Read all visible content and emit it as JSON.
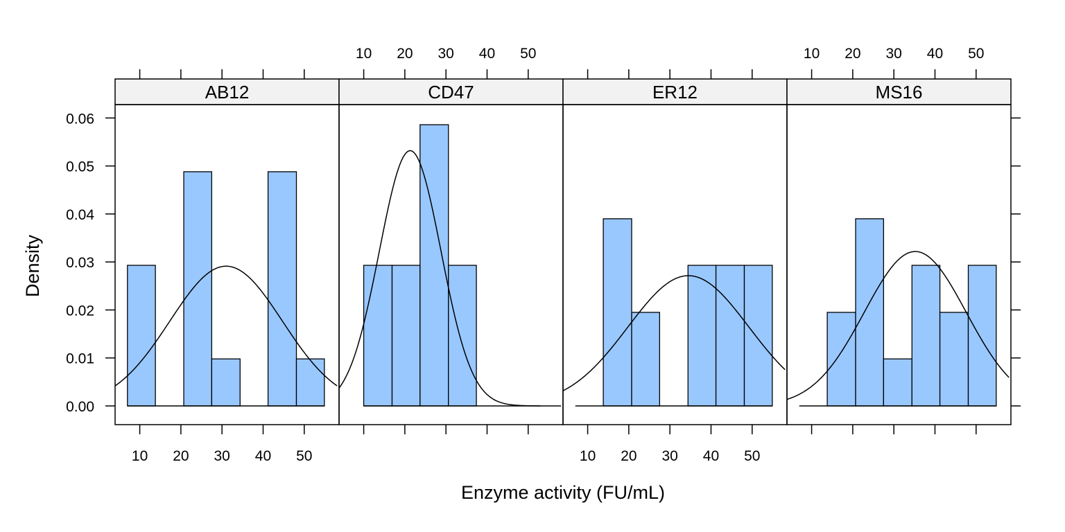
{
  "chart_data": {
    "type": "bar",
    "subtype": "lattice-histogram-with-density",
    "xlabel": "Enzyme activity (FU/mL)",
    "ylabel": "Density",
    "xlim": [
      4,
      58
    ],
    "ylim": [
      -0.004,
      0.0625
    ],
    "x_ticks": [
      10,
      20,
      30,
      40,
      50
    ],
    "y_ticks": [
      0.0,
      0.01,
      0.02,
      0.03,
      0.04,
      0.05,
      0.06
    ],
    "y_tick_labels": [
      "0.00",
      "0.01",
      "0.02",
      "0.03",
      "0.04",
      "0.05",
      "0.06"
    ],
    "grid": false,
    "colors": {
      "bar_fill": "#99c8ff",
      "bar_stroke": "#000000",
      "strip_fill": "#f2f2f2"
    },
    "panels": [
      {
        "name": "AB12",
        "x_tick_labels_side": "bottom",
        "baseline": [
          7,
          55
        ],
        "bins": [
          7,
          13.8,
          20.7,
          27.5,
          34.4,
          41.2,
          48.1,
          54.9
        ],
        "densities": [
          0.0293,
          0.0,
          0.0488,
          0.0098,
          0.0,
          0.0488,
          0.0098
        ],
        "curve": {
          "mean": 31,
          "sd": 13.7
        }
      },
      {
        "name": "CD47",
        "x_tick_labels_side": "top",
        "baseline": [
          10,
          53
        ],
        "bins": [
          10,
          16.9,
          23.7,
          30.6,
          37.4
        ],
        "densities": [
          0.0293,
          0.0293,
          0.0586,
          0.0293
        ],
        "curve": {
          "mean": 21.3,
          "sd": 7.5
        }
      },
      {
        "name": "ER12",
        "x_tick_labels_side": "bottom",
        "baseline": [
          7,
          55
        ],
        "bins": [
          13.8,
          20.7,
          27.5,
          34.4,
          41.2,
          48.1,
          54.9
        ],
        "densities": [
          0.039,
          0.0195,
          0.0,
          0.0293,
          0.0293,
          0.0293
        ],
        "curve": {
          "mean": 34.5,
          "sd": 14.7
        }
      },
      {
        "name": "MS16",
        "x_tick_labels_side": "top",
        "baseline": [
          7,
          55
        ],
        "bins": [
          13.8,
          20.7,
          27.5,
          34.4,
          41.2,
          48.1,
          54.9
        ],
        "densities": [
          0.0195,
          0.039,
          0.0098,
          0.0293,
          0.0195,
          0.0293
        ],
        "curve": {
          "mean": 35.2,
          "sd": 12.4
        }
      }
    ]
  }
}
